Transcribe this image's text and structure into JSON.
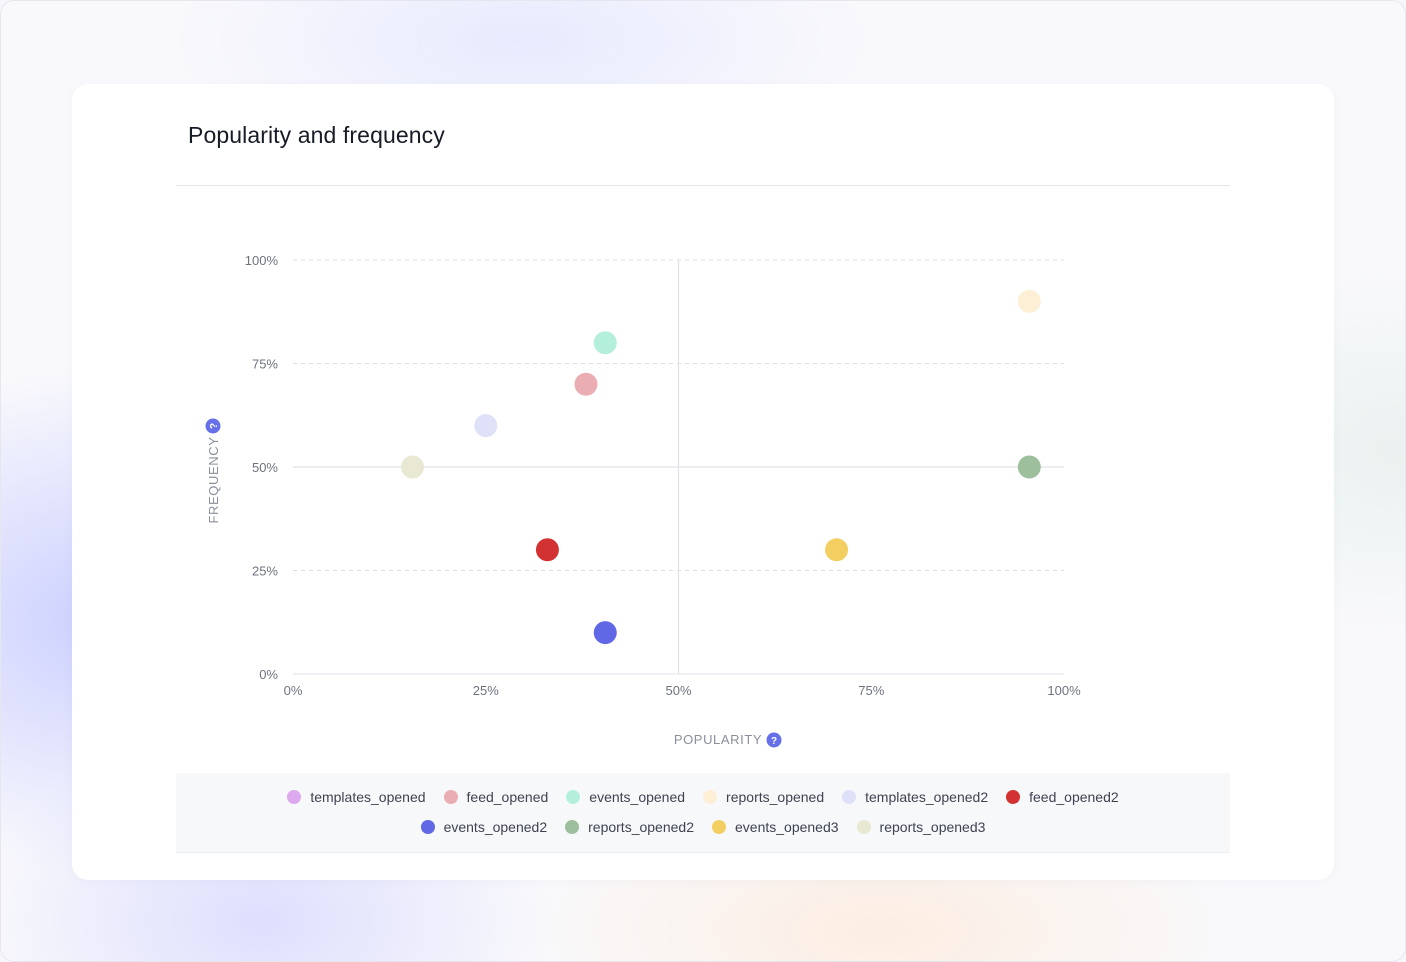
{
  "chart_data": {
    "type": "scatter",
    "title": "Popularity and frequency",
    "xlabel": "POPULARITY",
    "ylabel": "FREQUENCY",
    "xlim": [
      0,
      100
    ],
    "ylim": [
      0,
      100
    ],
    "x_ticks": [
      "0%",
      "25%",
      "50%",
      "75%",
      "100%"
    ],
    "y_ticks": [
      "0%",
      "25%",
      "50%",
      "75%",
      "100%"
    ],
    "grid": "dashed horizontal; solid lines at 50%",
    "legend": "bottom",
    "series": [
      {
        "name": "templates_opened",
        "color": "#dca8ee",
        "points": []
      },
      {
        "name": "feed_opened",
        "color": "#eaaeb2",
        "points": [
          [
            38,
            70
          ]
        ]
      },
      {
        "name": "events_opened",
        "color": "#b3efdb",
        "points": [
          [
            40.5,
            80
          ]
        ]
      },
      {
        "name": "reports_opened",
        "color": "#fdefd6",
        "points": [
          [
            95.5,
            90
          ]
        ]
      },
      {
        "name": "templates_opened2",
        "color": "#dfe1f8",
        "points": [
          [
            25,
            60
          ]
        ]
      },
      {
        "name": "feed_opened2",
        "color": "#d23232",
        "points": [
          [
            33,
            30
          ]
        ]
      },
      {
        "name": "events_opened2",
        "color": "#6168e6",
        "points": [
          [
            40.5,
            10
          ]
        ]
      },
      {
        "name": "reports_opened2",
        "color": "#9dbf9c",
        "points": [
          [
            95.5,
            50
          ]
        ]
      },
      {
        "name": "events_opened3",
        "color": "#f3cf61",
        "points": [
          [
            70.5,
            30
          ]
        ]
      },
      {
        "name": "reports_opened3",
        "color": "#e8e8d3",
        "points": [
          [
            15.5,
            50
          ]
        ]
      }
    ]
  }
}
